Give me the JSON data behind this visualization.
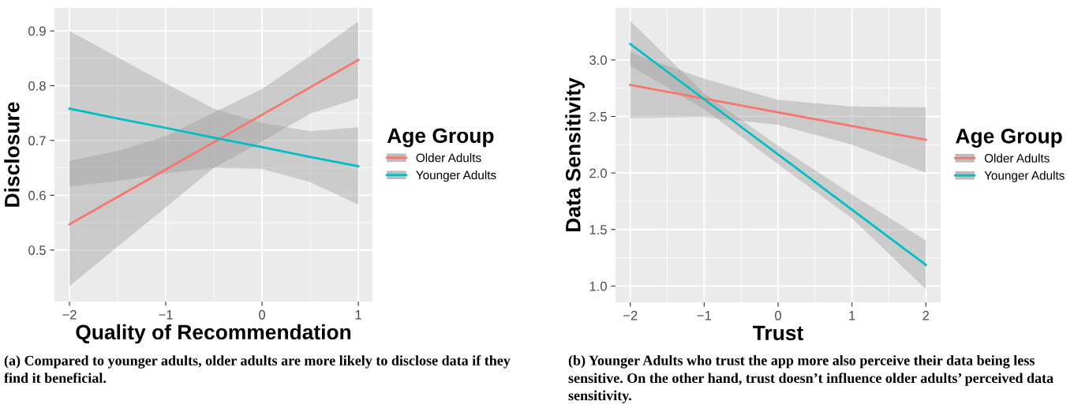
{
  "chart_data": [
    {
      "type": "line",
      "xlabel": "Quality of Recommendation",
      "ylabel": "Disclosure",
      "legend_title": "Age Group",
      "legend": "right",
      "grid": true,
      "xlim": [
        -2.156,
        1.147
      ],
      "ylim": [
        0.406,
        0.942
      ],
      "xticks": [
        {
          "value": -2,
          "label": "−2"
        },
        {
          "value": -1,
          "label": "−1"
        },
        {
          "value": 0,
          "label": "0"
        },
        {
          "value": 1,
          "label": "1"
        }
      ],
      "yticks": [
        {
          "value": 0.5,
          "label": "0.5"
        },
        {
          "value": 0.6,
          "label": "0.6"
        },
        {
          "value": 0.7,
          "label": "0.7"
        },
        {
          "value": 0.8,
          "label": "0.8"
        },
        {
          "value": 0.9,
          "label": "0.9"
        }
      ],
      "x": [
        -2,
        -1.5,
        -1,
        -0.5,
        0,
        0.5,
        1
      ],
      "series": [
        {
          "name": "Older Adults",
          "color": "#f8766d",
          "values": [
            0.547,
            0.597,
            0.647,
            0.697,
            0.747,
            0.797,
            0.847
          ],
          "lower": [
            0.434,
            0.506,
            0.578,
            0.65,
            0.698,
            0.749,
            0.777
          ],
          "upper": [
            0.663,
            0.681,
            0.708,
            0.751,
            0.794,
            0.854,
            0.917
          ]
        },
        {
          "name": "Younger Adults",
          "color": "#00bfc4",
          "values": [
            0.758,
            0.74,
            0.723,
            0.705,
            0.688,
            0.67,
            0.653
          ],
          "lower": [
            0.616,
            0.626,
            0.64,
            0.65,
            0.648,
            0.624,
            0.583
          ],
          "upper": [
            0.9,
            0.852,
            0.804,
            0.758,
            0.732,
            0.717,
            0.724
          ]
        }
      ],
      "annotations": [
        "(a) Compared to younger adults, older adults are more likely to disclose data if they find it beneficial."
      ]
    },
    {
      "type": "line",
      "xlabel": "Trust",
      "ylabel": "Data Sensitivity",
      "legend_title": "Age Group",
      "legend": "right",
      "grid": true,
      "xlim": [
        -2.2,
        2.2
      ],
      "ylim": [
        0.856,
        3.46
      ],
      "xticks": [
        {
          "value": -2,
          "label": "−2"
        },
        {
          "value": -1,
          "label": "−1"
        },
        {
          "value": 0,
          "label": "0"
        },
        {
          "value": 1,
          "label": "1"
        },
        {
          "value": 2,
          "label": "2"
        }
      ],
      "yticks": [
        {
          "value": 1.0,
          "label": "1.0"
        },
        {
          "value": 1.5,
          "label": "1.5"
        },
        {
          "value": 2.0,
          "label": "2.0"
        },
        {
          "value": 2.5,
          "label": "2.5"
        },
        {
          "value": 3.0,
          "label": "3.0"
        }
      ],
      "x": [
        -2,
        -1,
        0,
        1,
        2
      ],
      "series": [
        {
          "name": "Older Adults",
          "color": "#f8766d",
          "values": [
            2.779,
            2.658,
            2.536,
            2.415,
            2.293
          ],
          "lower": [
            2.484,
            2.495,
            2.426,
            2.251,
            2.002
          ],
          "upper": [
            3.065,
            2.833,
            2.647,
            2.588,
            2.581
          ]
        },
        {
          "name": "Younger Adults",
          "color": "#00bfc4",
          "values": [
            3.14,
            2.652,
            2.164,
            1.676,
            1.188
          ],
          "lower": [
            2.949,
            2.565,
            2.077,
            1.6,
            0.972
          ],
          "upper": [
            3.344,
            2.705,
            2.24,
            1.809,
            1.402
          ]
        }
      ],
      "annotations": [
        "(b) Younger Adults who trust the app more also perceive their data being less sensitive. On the other hand, trust doesn’t influence older adults’ perceived data sensitivity."
      ]
    }
  ]
}
